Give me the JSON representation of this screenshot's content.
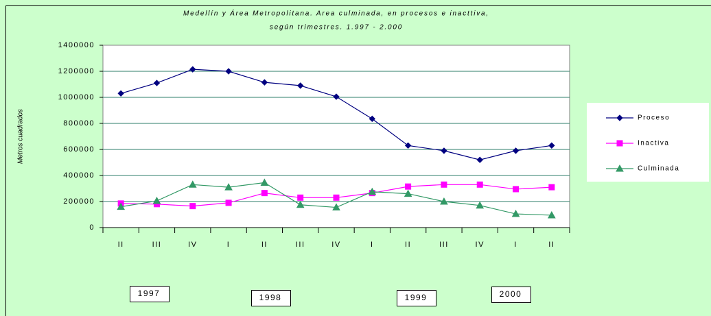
{
  "chart_data": {
    "type": "line",
    "title": "Medellín y Área Metropolitana. Area culminada, en procesos e inacttiva,",
    "subtitle": "según trimestres.  1.997 - 2.000",
    "y_label": "Metros cuadrados",
    "categories": [
      "II",
      "III",
      "IV",
      "I",
      "II",
      "III",
      "IV",
      "I",
      "II",
      "III",
      "IV",
      "I",
      "II"
    ],
    "series": [
      {
        "name": "Proceso",
        "color": "#000080",
        "marker": "diamond",
        "values": [
          1030000,
          1110000,
          1215000,
          1200000,
          1115000,
          1090000,
          1005000,
          835000,
          630000,
          590000,
          520000,
          590000,
          630000
        ]
      },
      {
        "name": "Inactiva",
        "color": "#ff00ff",
        "marker": "square",
        "values": [
          185000,
          180000,
          165000,
          190000,
          265000,
          230000,
          230000,
          265000,
          315000,
          330000,
          330000,
          295000,
          310000
        ]
      },
      {
        "name": "Culminada",
        "color": "#339966",
        "marker": "triangle",
        "values": [
          160000,
          205000,
          330000,
          310000,
          345000,
          175000,
          155000,
          275000,
          260000,
          200000,
          170000,
          105000,
          95000
        ]
      }
    ],
    "ylim": [
      0,
      1400000
    ],
    "yticks": [
      0,
      200000,
      400000,
      600000,
      800000,
      1000000,
      1200000,
      1400000
    ],
    "grid": true,
    "legend": "right",
    "annotations": [
      "1997",
      "1998",
      "1999",
      "2000"
    ]
  }
}
